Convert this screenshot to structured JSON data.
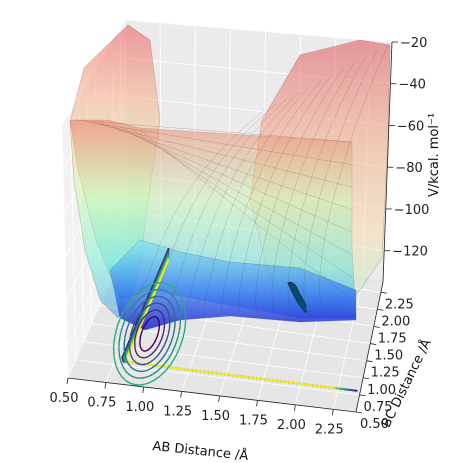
{
  "chart_data": {
    "type": "surface",
    "xlabel": "AB Distance /Å",
    "ylabel": "BC Distance /Å",
    "zlabel": "V/kcal. mol⁻¹",
    "x_ticks": [
      "0.50",
      "0.75",
      "1.00",
      "1.25",
      "1.50",
      "1.75",
      "2.00",
      "2.25"
    ],
    "y_ticks": [
      "0.50",
      "0.75",
      "1.00",
      "1.25",
      "1.50",
      "1.75",
      "2.00",
      "2.25"
    ],
    "z_ticks": [
      "−20",
      "−40",
      "−60",
      "−80",
      "−100",
      "−120"
    ],
    "xlim": [
      0.5,
      2.4
    ],
    "ylim": [
      0.5,
      2.4
    ],
    "zlim": [
      -135,
      -20
    ],
    "grid": true,
    "colormap": "viridis",
    "surface_alpha": 0.4,
    "colors": {
      "surface_high": "#e8585a",
      "surface_mid": "#9ff5c8",
      "surface_low": "#1e3ad8",
      "contour_low": "#440154",
      "contour_high": "#fde725",
      "trajectory": "#0b4a6e"
    }
  }
}
